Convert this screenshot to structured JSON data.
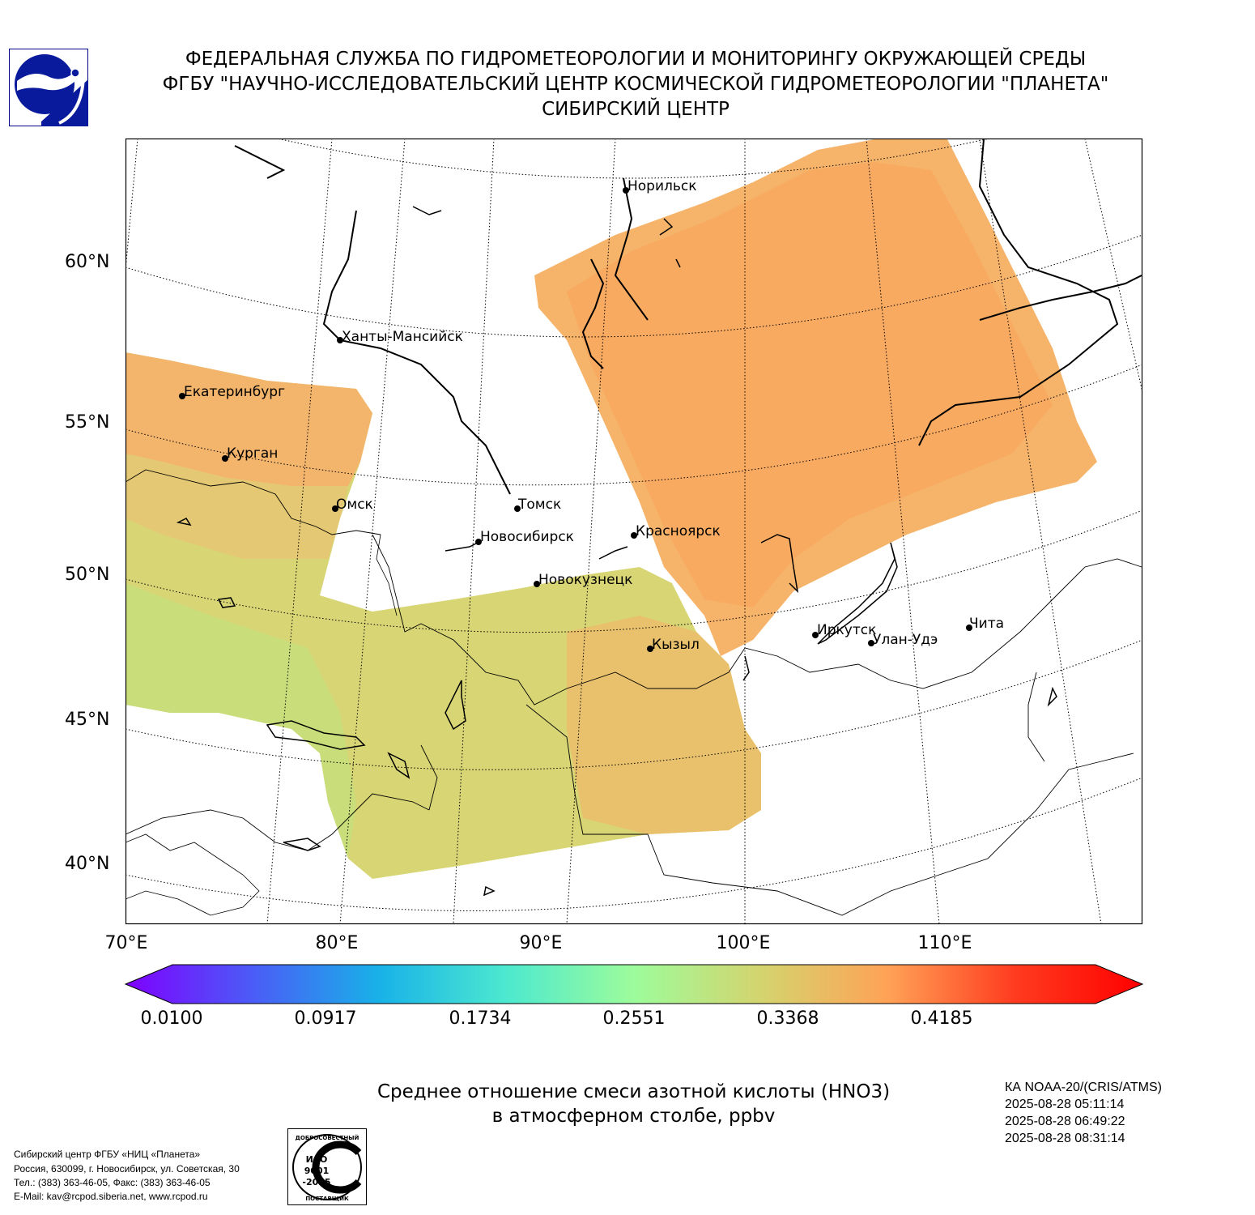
{
  "header": {
    "line1": "ФЕДЕРАЛЬНАЯ СЛУЖБА ПО ГИДРОМЕТЕОРОЛОГИИ И МОНИТОРИНГУ ОКРУЖАЮЩЕЙ СРЕДЫ",
    "line2": "ФГБУ \"НАУЧНО-ИССЛЕДОВАТЕЛЬСКИЙ ЦЕНТР КОСМИЧЕСКОЙ ГИДРОМЕТЕОРОЛОГИИ \"ПЛАНЕТА\"",
    "line3": "СИБИРСКИЙ ЦЕНТР"
  },
  "map": {
    "lat_labels": [
      "60°N",
      "55°N",
      "50°N",
      "45°N",
      "40°N"
    ],
    "lon_labels": [
      "70°E",
      "80°E",
      "90°E",
      "100°E",
      "110°E"
    ],
    "cities": [
      "Норильск",
      "Ханты-Мансийск",
      "Екатеринбург",
      "Курган",
      "Омск",
      "Томск",
      "Новосибирск",
      "Красноярск",
      "Новокузнецк",
      "Кызыл",
      "Иркутск",
      "Улан-Удэ",
      "Чита"
    ]
  },
  "colorbar": {
    "ticks": [
      "0.0100",
      "0.0917",
      "0.1734",
      "0.2551",
      "0.3368",
      "0.4185"
    ],
    "colors": [
      "#7f00ff",
      "#4b5cf7",
      "#18b2e8",
      "#4de9cf",
      "#9dfc9b",
      "#d4d46e",
      "#ffa256",
      "#ff3b1f",
      "#ff0000"
    ]
  },
  "title": {
    "line1": "Среднее отношение смеси азотной кислоты (HNO3)",
    "line2": "в атмосферном столбе, ppbv"
  },
  "satellite": {
    "name": "КА NOAA-20/(CRIS/ATMS)",
    "t1": "2025-08-28 05:11:14",
    "t2": "2025-08-28 06:49:22",
    "t3": "2025-08-28 08:31:14"
  },
  "footer": {
    "org": "Сибирский центр ФГБУ «НИЦ «Планета»",
    "address": "Россия, 630099, г. Новосибирск, ул. Советская, 30",
    "phone": "Тел.: (383) 363-46-05, Факс: (383) 363-46-05",
    "email": "E-Mail: kav@rcpod.siberia.net, www.rcpod.ru"
  },
  "iso_badge": {
    "top_text": "ДОБРОСОВЕСТНЫЙ",
    "l1": "ИСО",
    "l2": "9001",
    "l3": "-2015",
    "bottom_text": "ПОСТАВЩИК"
  },
  "chart_data": {
    "type": "heatmap",
    "title": "Среднее отношение смеси азотной кислоты (HNO3) в атмосферном столбе, ppbv",
    "colorbar_ticks": [
      0.01,
      0.0917,
      0.1734,
      0.2551,
      0.3368,
      0.4185
    ],
    "xlim": [
      70,
      120
    ],
    "ylim": [
      38,
      64
    ]
  }
}
